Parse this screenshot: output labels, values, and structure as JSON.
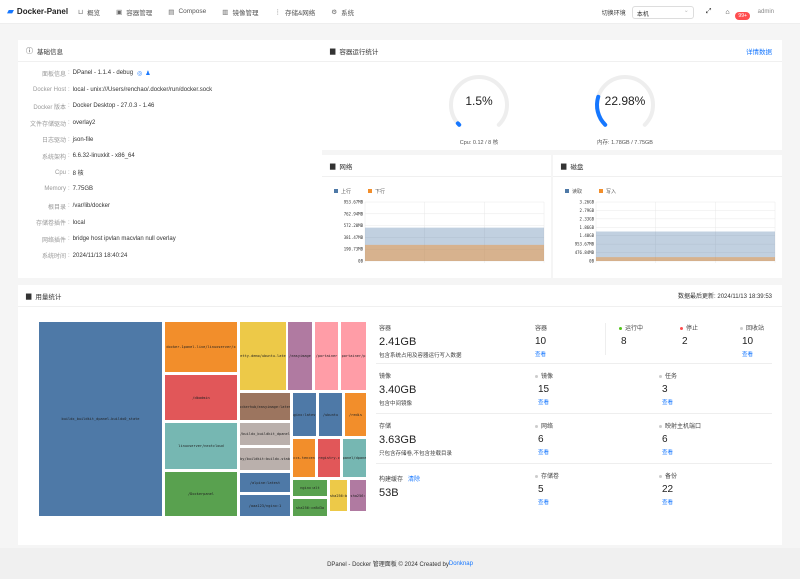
{
  "header": {
    "brand": "Docker-Panel",
    "nav": [
      {
        "label": "概览",
        "icon": "chart-icon"
      },
      {
        "label": "容器管理",
        "icon": "container-icon"
      },
      {
        "label": "Compose",
        "icon": "compose-icon"
      },
      {
        "label": "镜像管理",
        "icon": "image-icon"
      },
      {
        "label": "存储&网络",
        "icon": "storage-icon"
      },
      {
        "label": "系统",
        "icon": "gear-icon"
      }
    ],
    "env_label": "切换环境",
    "env_value": "本机",
    "notify_badge": "99+",
    "user": "admin"
  },
  "basic": {
    "title": "基础信息",
    "rows": [
      {
        "k": "面板信息",
        "v": "DPanel - 1.1.4 - debug"
      },
      {
        "k": "Docker Host",
        "v": "local - unix:///Users/renchao/.docker/run/docker.sock"
      },
      {
        "k": "Docker 版本",
        "v": "Docker Desktop - 27.0.3 - 1.46"
      },
      {
        "k": "文件存储驱动",
        "v": "overlay2"
      },
      {
        "k": "日志驱动",
        "v": "json-file"
      },
      {
        "k": "系统架构",
        "v": "6.6.32-linuxkit - x86_64"
      },
      {
        "k": "Cpu",
        "v": "8 核"
      },
      {
        "k": "Memory",
        "v": "7.75GB"
      },
      {
        "k": "根目录",
        "v": "/var/lib/docker"
      },
      {
        "k": "存储卷插件",
        "v": "local"
      },
      {
        "k": "网络插件",
        "v": "bridge  host  ipvlan  macvlan  null  overlay"
      },
      {
        "k": "系统时间",
        "v": "2024/11/13 18:40:24"
      }
    ]
  },
  "runtime": {
    "title": "容器运行统计",
    "detail_link": "详情数据",
    "cpu": {
      "value": "1.5%",
      "percent": 1.5,
      "caption": "Cpu: 0.12 / 8 核"
    },
    "mem": {
      "value": "22.98%",
      "percent": 22.98,
      "caption": "内存: 1.78GB / 7.75GB"
    },
    "accent": "#1677ff"
  },
  "chart_data": [
    {
      "type": "area",
      "title": "网络",
      "series": [
        {
          "name": "上行",
          "color": "#4e79a7",
          "values": [
            540,
            540,
            540,
            540
          ]
        },
        {
          "name": "下行",
          "color": "#f28e2b",
          "values": [
            260,
            260,
            260,
            260
          ]
        }
      ],
      "yticks": [
        "0B",
        "190.73MB",
        "381.47MB",
        "572.20MB",
        "762.94MB",
        "953.67MB"
      ],
      "ylim": [
        0,
        953.67
      ],
      "grid": true,
      "legend": "top-left"
    },
    {
      "type": "area",
      "title": "磁盘",
      "series": [
        {
          "name": "读取",
          "color": "#4e79a7",
          "values": [
            1670,
            1670,
            1670,
            1670
          ]
        },
        {
          "name": "写入",
          "color": "#f28e2b",
          "values": [
            220,
            220,
            220,
            220
          ]
        }
      ],
      "yticks": [
        "0B",
        "476.84MB",
        "953.67MB",
        "1.40GB",
        "1.86GB",
        "2.33GB",
        "2.79GB",
        "3.26GB"
      ],
      "ylim": [
        0,
        3338
      ],
      "grid": true,
      "legend": "top-left"
    }
  ],
  "usage": {
    "title": "用量统计",
    "updated": "数据最后更新: 2024/11/13 18:39:53",
    "treemap": [
      {
        "label": "buildx_buildkit_dpanel-buildx0_state",
        "color": "#4e79a7"
      },
      {
        "label": "docker.1panel.live/linuxserver/x",
        "color": "#f28e2b"
      },
      {
        "label": "/dbadmin",
        "color": "#e15759"
      },
      {
        "label": "linuxserver/nextcloud",
        "color": "#76b7b2"
      },
      {
        "label": "/Dockerpanel",
        "color": "#59a14f"
      },
      {
        "label": "pretty-demo/ubuntu-latest",
        "color": "#edc948"
      },
      {
        "label": "/easyimage",
        "color": "#b07aa1"
      },
      {
        "label": "/portainer",
        "color": "#ff9da7"
      },
      {
        "label": "portainer/p",
        "color": "#ff9da7"
      },
      {
        "label": "dockerhub/easyimage:latest",
        "color": "#9c755f"
      },
      {
        "label": "/buildx_buildkit_dpanel",
        "color": "#bab0ac"
      },
      {
        "label": "moby/buildkit:buildx-stable",
        "color": "#bab0ac"
      },
      {
        "label": "/alpine:latest",
        "color": "#4e79a7"
      },
      {
        "label": "/aaa123/nginx:1",
        "color": "#4e79a7"
      },
      {
        "label": "nginx:latest",
        "color": "#4e79a7"
      },
      {
        "label": "/ubuntu",
        "color": "#4e79a7"
      },
      {
        "label": "/redis",
        "color": "#f28e2b"
      },
      {
        "label": "ccr.ccs.tencentyun",
        "color": "#f28e2b"
      },
      {
        "label": "registry.c",
        "color": "#e15759"
      },
      {
        "label": "dpanel/dpanel",
        "color": "#76b7b2"
      },
      {
        "label": "nginx:alt",
        "color": "#59a14f"
      },
      {
        "label": "sha256:ce8d3a",
        "color": "#59a14f"
      },
      {
        "label": "sha256:b",
        "color": "#edc948"
      },
      {
        "label": "sha256:",
        "color": "#b07aa1"
      }
    ],
    "container": {
      "label": "容器",
      "size": "2.41GB",
      "desc": "包含系统占用及容器运行写入数据",
      "count_label": "容器",
      "count": "10",
      "running_label": "运行中",
      "running": "8",
      "stopped_label": "停止",
      "stopped": "2",
      "trash_label": "回收站",
      "trash": "10"
    },
    "image": {
      "label": "镜像",
      "size": "3.40GB",
      "desc": "包含中间镜像",
      "count_label": "镜像",
      "count": "15",
      "task_label": "任务",
      "task": "3"
    },
    "storage": {
      "label": "存储",
      "size": "3.63GB",
      "desc": "只包含存储卷,不包含挂载目录",
      "network_label": "网络",
      "network": "6",
      "port_label": "映射主机端口",
      "port": "6"
    },
    "cache": {
      "label": "构建缓存",
      "clear": "清除",
      "size": "53B",
      "volume_label": "存储卷",
      "volume": "5",
      "backup_label": "备份",
      "backup": "22"
    },
    "view": "查看"
  },
  "footer": {
    "text": "DPanel - Docker 管理面板 © 2024 Created by ",
    "link": "Donknap"
  }
}
